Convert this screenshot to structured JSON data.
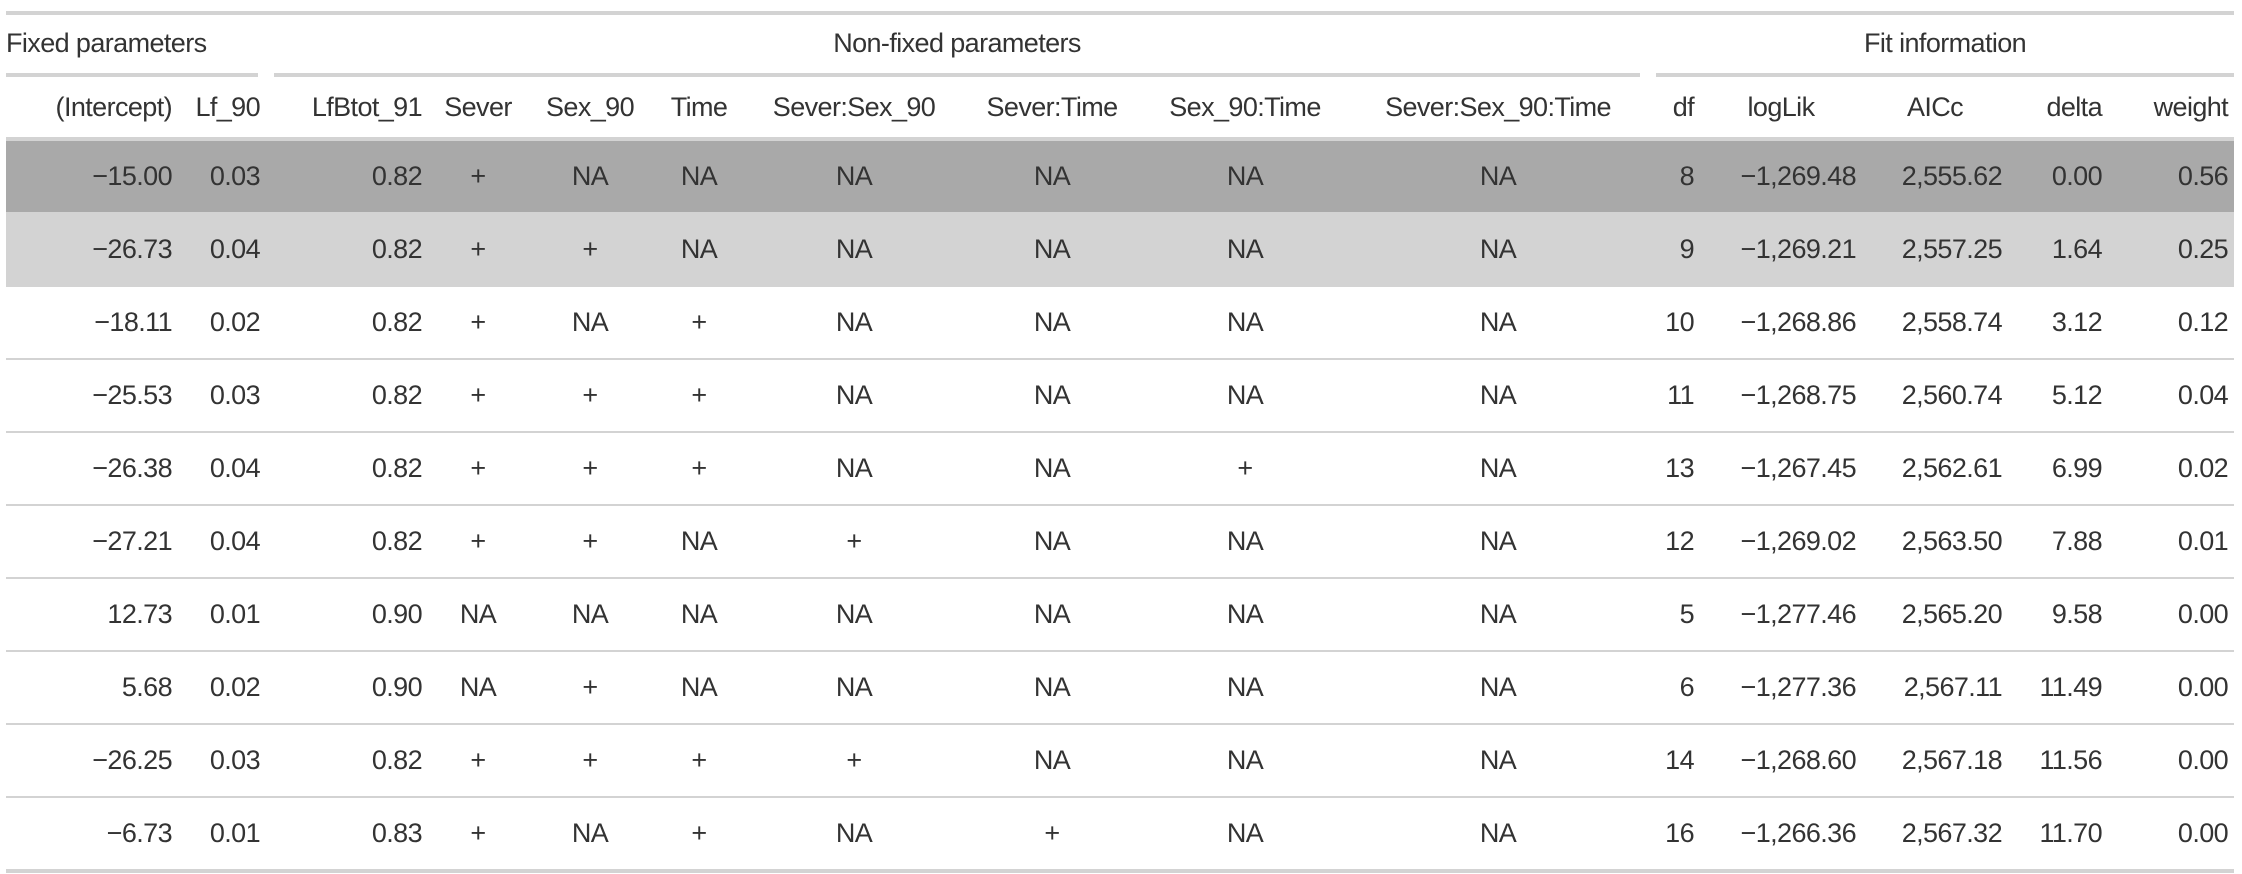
{
  "spanners": {
    "fixed": "Fixed parameters",
    "nonfixed": "Non-fixed parameters",
    "fit": "Fit information"
  },
  "columns": [
    "(Intercept)",
    "Lf_90",
    "LfBtot_91",
    "Sever",
    "Sex_90",
    "Time",
    "Sever:Sex_90",
    "Sever:Time",
    "Sex_90:Time",
    "Sever:Sex_90:Time",
    "df",
    "logLik",
    "AICc",
    "delta",
    "weight"
  ],
  "highlight_colors": {
    "row1": "#a9a9a9",
    "row2": "#d3d3d3"
  },
  "rows": [
    [
      "−15.00",
      "0.03",
      "0.82",
      "+",
      "NA",
      "NA",
      "NA",
      "NA",
      "NA",
      "NA",
      "8",
      "−1,269.48",
      "2,555.62",
      "0.00",
      "0.56"
    ],
    [
      "−26.73",
      "0.04",
      "0.82",
      "+",
      "+",
      "NA",
      "NA",
      "NA",
      "NA",
      "NA",
      "9",
      "−1,269.21",
      "2,557.25",
      "1.64",
      "0.25"
    ],
    [
      "−18.11",
      "0.02",
      "0.82",
      "+",
      "NA",
      "+",
      "NA",
      "NA",
      "NA",
      "NA",
      "10",
      "−1,268.86",
      "2,558.74",
      "3.12",
      "0.12"
    ],
    [
      "−25.53",
      "0.03",
      "0.82",
      "+",
      "+",
      "+",
      "NA",
      "NA",
      "NA",
      "NA",
      "11",
      "−1,268.75",
      "2,560.74",
      "5.12",
      "0.04"
    ],
    [
      "−26.38",
      "0.04",
      "0.82",
      "+",
      "+",
      "+",
      "NA",
      "NA",
      "+",
      "NA",
      "13",
      "−1,267.45",
      "2,562.61",
      "6.99",
      "0.02"
    ],
    [
      "−27.21",
      "0.04",
      "0.82",
      "+",
      "+",
      "NA",
      "+",
      "NA",
      "NA",
      "NA",
      "12",
      "−1,269.02",
      "2,563.50",
      "7.88",
      "0.01"
    ],
    [
      "12.73",
      "0.01",
      "0.90",
      "NA",
      "NA",
      "NA",
      "NA",
      "NA",
      "NA",
      "NA",
      "5",
      "−1,277.46",
      "2,565.20",
      "9.58",
      "0.00"
    ],
    [
      "5.68",
      "0.02",
      "0.90",
      "NA",
      "+",
      "NA",
      "NA",
      "NA",
      "NA",
      "NA",
      "6",
      "−1,277.36",
      "2,567.11",
      "11.49",
      "0.00"
    ],
    [
      "−26.25",
      "0.03",
      "0.82",
      "+",
      "+",
      "+",
      "+",
      "NA",
      "NA",
      "NA",
      "14",
      "−1,268.60",
      "2,567.18",
      "11.56",
      "0.00"
    ],
    [
      "−6.73",
      "0.01",
      "0.83",
      "+",
      "NA",
      "+",
      "NA",
      "+",
      "NA",
      "NA",
      "16",
      "−1,266.36",
      "2,567.32",
      "11.70",
      "0.00"
    ]
  ]
}
